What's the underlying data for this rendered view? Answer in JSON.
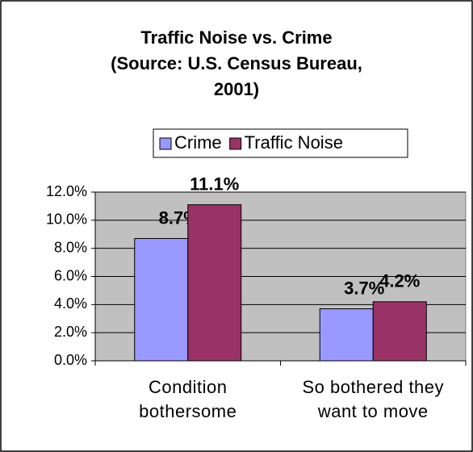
{
  "chart_data": {
    "type": "bar",
    "title": [
      "Traffic Noise vs. Crime",
      "(Source: U.S. Census Bureau,",
      "2001)"
    ],
    "categories": [
      "Condition bothersome",
      "So bothered they want to move"
    ],
    "series": [
      {
        "name": "Crime",
        "color": "#9999ff",
        "values": [
          8.7,
          3.7
        ],
        "value_labels": [
          "8.7%",
          "3.7%"
        ]
      },
      {
        "name": "Traffic Noise",
        "color": "#993366",
        "values": [
          11.1,
          4.2
        ],
        "value_labels": [
          "11.1%",
          "4.2%"
        ]
      }
    ],
    "ylim": [
      0,
      12
    ],
    "yticks": [
      {
        "value": 0,
        "label": "0.0%"
      },
      {
        "value": 2,
        "label": "2.0%"
      },
      {
        "value": 4,
        "label": "4.0%"
      },
      {
        "value": 6,
        "label": "6.0%"
      },
      {
        "value": 8,
        "label": "8.0%"
      },
      {
        "value": 10,
        "label": "10.0%"
      },
      {
        "value": 12,
        "label": "12.0%"
      }
    ],
    "grid": true,
    "plot_background": "#c0c0c0",
    "legend": "top"
  }
}
